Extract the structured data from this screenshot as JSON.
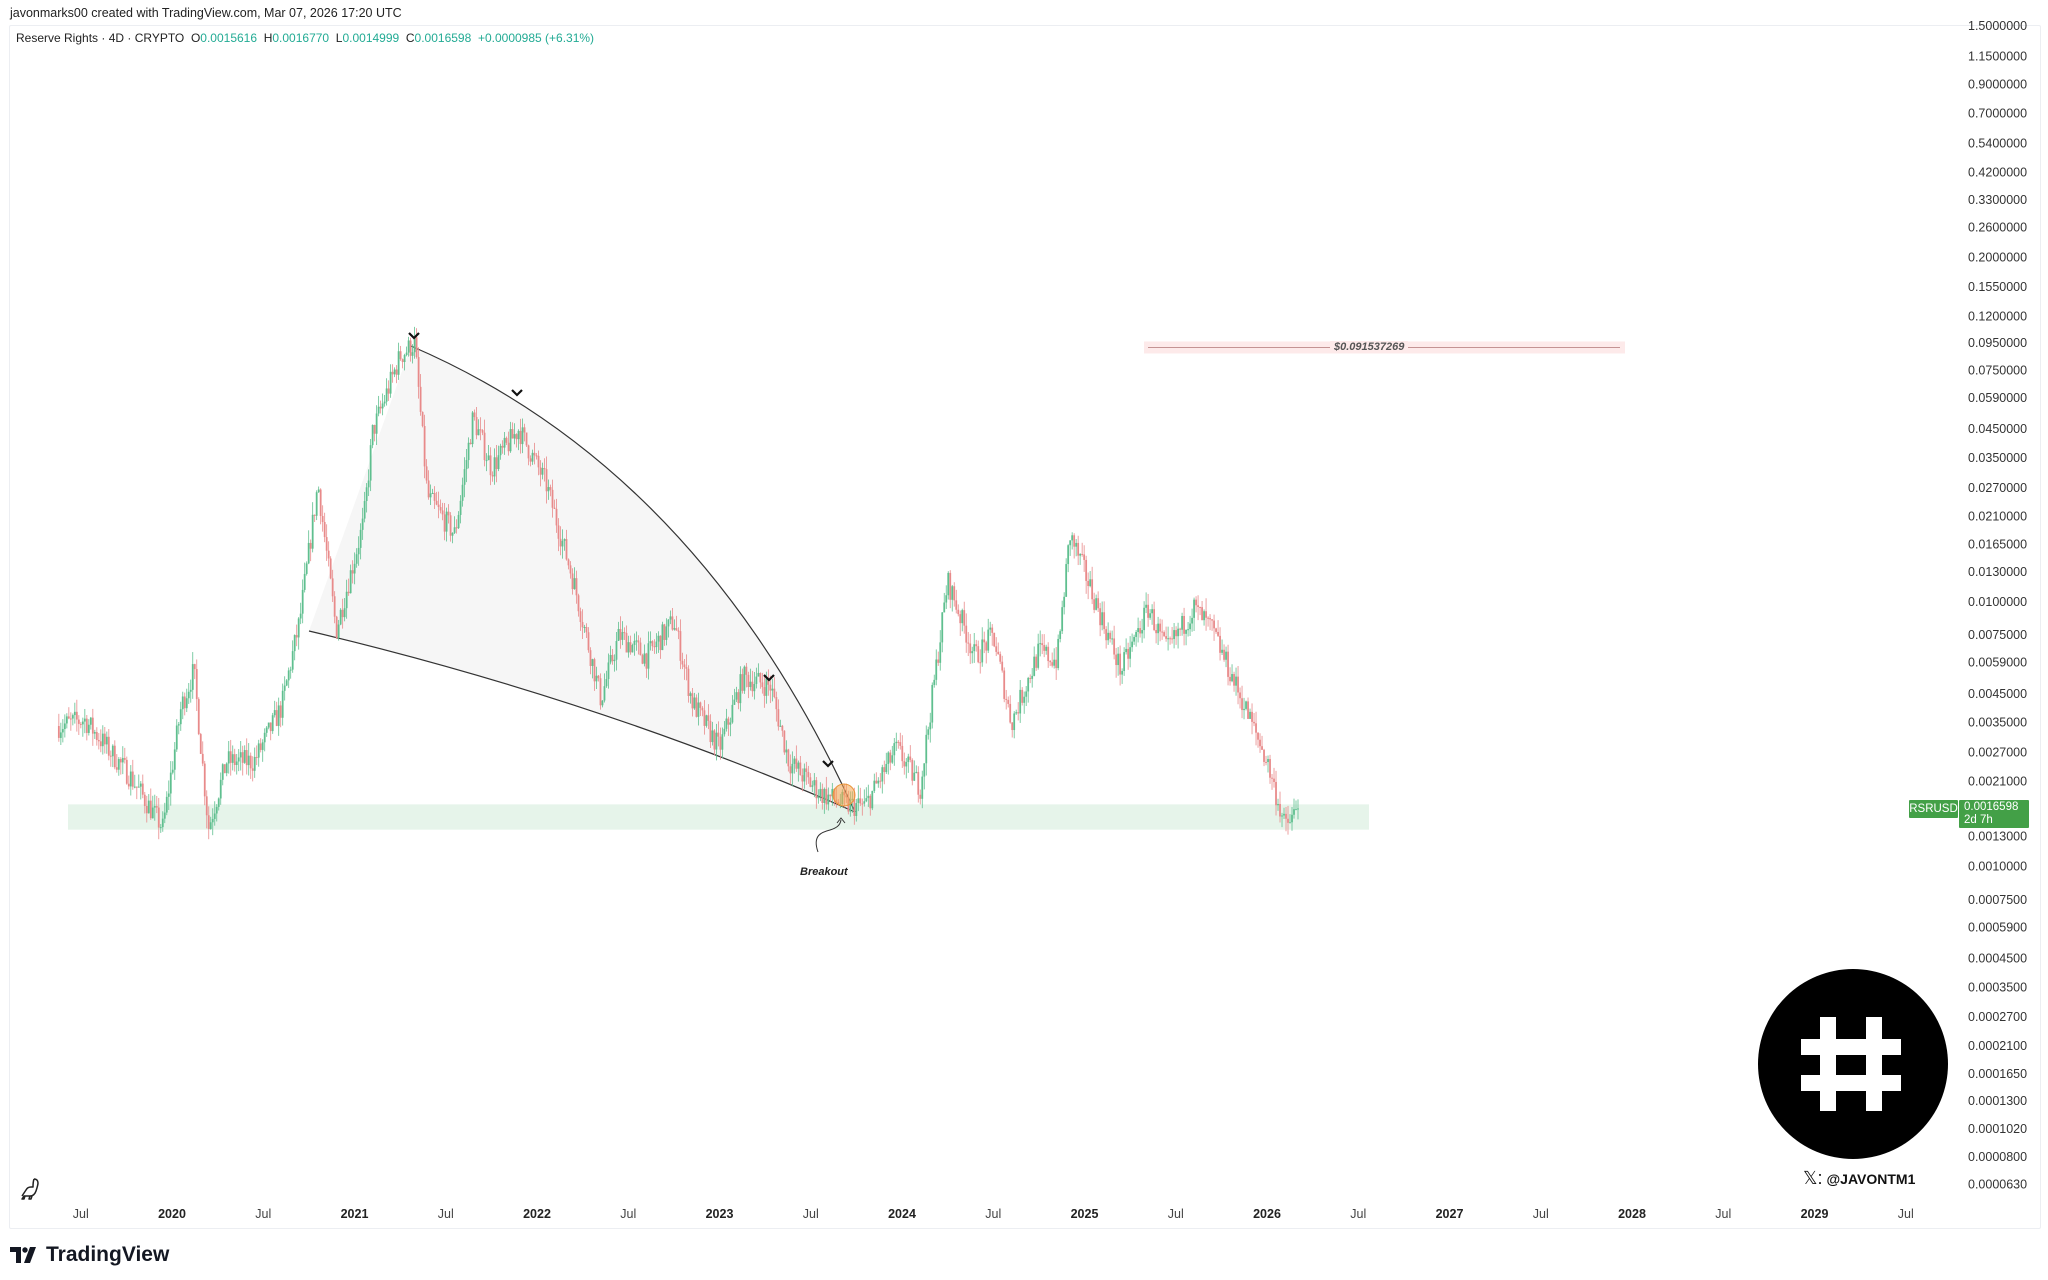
{
  "header": {
    "credit": "javonmarks00 created with TradingView.com, Mar 07, 2026 17:20 UTC",
    "symbol_desc": "Reserve Rights · 4D · CRYPTO",
    "open_label": "O",
    "open": "0.0015616",
    "high_label": "H",
    "high": "0.0016770",
    "low_label": "L",
    "low": "0.0014999",
    "close_label": "C",
    "close": "0.0016598",
    "change": "+0.0000985 (+6.31%)"
  },
  "price_tag": {
    "symbol": "RSRUSD",
    "price": "0.0016598",
    "countdown": "2d 7h"
  },
  "annotations": {
    "target_label": "$0.091537269",
    "breakout_label": "Breakout",
    "handle": "@JAVONTM1"
  },
  "footer": {
    "brand": "TradingView"
  },
  "colors": {
    "up": "#5fbf8f",
    "down": "#e88a8a",
    "accent": "#43a047",
    "zone": "#e6f4ea",
    "target_line": "#c49393"
  },
  "chart_data": {
    "type": "candlestick",
    "title": "Reserve Rights · 4D · CRYPTO",
    "scale": "log",
    "ylim": [
      6.3e-05,
      1.5
    ],
    "xlim": [
      2019.2,
      2029.85
    ],
    "y_ticks": [
      "1.5000000",
      "1.1500000",
      "0.9000000",
      "0.7000000",
      "0.5400000",
      "0.4200000",
      "0.3300000",
      "0.2600000",
      "0.2000000",
      "0.1550000",
      "0.1200000",
      "0.0950000",
      "0.0750000",
      "0.0590000",
      "0.0450000",
      "0.0350000",
      "0.0270000",
      "0.0210000",
      "0.0165000",
      "0.0130000",
      "0.0100000",
      "0.0075000",
      "0.0059000",
      "0.0045000",
      "0.0035000",
      "0.0027000",
      "0.0021000",
      "0.0013000",
      "0.0010000",
      "0.0007500",
      "0.0005900",
      "0.0004500",
      "0.0003500",
      "0.0002700",
      "0.0002100",
      "0.0001650",
      "0.0001300",
      "0.0001020",
      "0.0000800",
      "0.0000630"
    ],
    "x_ticks": [
      {
        "t": 2019.5,
        "label": "Jul",
        "year": false
      },
      {
        "t": 2020.0,
        "label": "2020",
        "year": true
      },
      {
        "t": 2020.5,
        "label": "Jul",
        "year": false
      },
      {
        "t": 2021.0,
        "label": "2021",
        "year": true
      },
      {
        "t": 2021.5,
        "label": "Jul",
        "year": false
      },
      {
        "t": 2022.0,
        "label": "2022",
        "year": true
      },
      {
        "t": 2022.5,
        "label": "Jul",
        "year": false
      },
      {
        "t": 2023.0,
        "label": "2023",
        "year": true
      },
      {
        "t": 2023.5,
        "label": "Jul",
        "year": false
      },
      {
        "t": 2024.0,
        "label": "2024",
        "year": true
      },
      {
        "t": 2024.5,
        "label": "Jul",
        "year": false
      },
      {
        "t": 2025.0,
        "label": "2025",
        "year": true
      },
      {
        "t": 2025.5,
        "label": "Jul",
        "year": false
      },
      {
        "t": 2026.0,
        "label": "2026",
        "year": true
      },
      {
        "t": 2026.5,
        "label": "Jul",
        "year": false
      },
      {
        "t": 2027.0,
        "label": "2027",
        "year": true
      },
      {
        "t": 2027.5,
        "label": "Jul",
        "year": false
      },
      {
        "t": 2028.0,
        "label": "2028",
        "year": true
      },
      {
        "t": 2028.5,
        "label": "Jul",
        "year": false
      },
      {
        "t": 2029.0,
        "label": "2029",
        "year": true
      },
      {
        "t": 2029.5,
        "label": "Jul",
        "year": false
      }
    ],
    "candle_interval_days": 4,
    "price_path": [
      [
        2019.38,
        0.0034
      ],
      [
        2019.52,
        0.0036
      ],
      [
        2019.77,
        0.0022
      ],
      [
        2019.95,
        0.0014
      ],
      [
        2020.05,
        0.004
      ],
      [
        2020.12,
        0.0055
      ],
      [
        2020.2,
        0.0014
      ],
      [
        2020.3,
        0.0025
      ],
      [
        2020.45,
        0.0025
      ],
      [
        2020.6,
        0.004
      ],
      [
        2020.7,
        0.0085
      ],
      [
        2020.8,
        0.028
      ],
      [
        2020.9,
        0.0078
      ],
      [
        2021.05,
        0.02
      ],
      [
        2021.1,
        0.044
      ],
      [
        2021.25,
        0.085
      ],
      [
        2021.33,
        0.095
      ],
      [
        2021.4,
        0.025
      ],
      [
        2021.55,
        0.018
      ],
      [
        2021.65,
        0.05
      ],
      [
        2021.75,
        0.032
      ],
      [
        2021.9,
        0.045
      ],
      [
        2022.05,
        0.028
      ],
      [
        2022.2,
        0.012
      ],
      [
        2022.35,
        0.0043
      ],
      [
        2022.45,
        0.0075
      ],
      [
        2022.6,
        0.0062
      ],
      [
        2022.75,
        0.0085
      ],
      [
        2022.85,
        0.0042
      ],
      [
        2023.0,
        0.0028
      ],
      [
        2023.13,
        0.0052
      ],
      [
        2023.28,
        0.0048
      ],
      [
        2023.38,
        0.0025
      ],
      [
        2023.55,
        0.0019
      ],
      [
        2023.7,
        0.0017
      ],
      [
        2023.8,
        0.0017
      ],
      [
        2023.97,
        0.0028
      ],
      [
        2024.1,
        0.002
      ],
      [
        2024.25,
        0.012
      ],
      [
        2024.4,
        0.0062
      ],
      [
        2024.5,
        0.0075
      ],
      [
        2024.6,
        0.0035
      ],
      [
        2024.75,
        0.0065
      ],
      [
        2024.85,
        0.006
      ],
      [
        2024.92,
        0.018
      ],
      [
        2025.0,
        0.013
      ],
      [
        2025.2,
        0.0055
      ],
      [
        2025.35,
        0.0095
      ],
      [
        2025.45,
        0.0065
      ],
      [
        2025.6,
        0.0095
      ],
      [
        2025.7,
        0.0078
      ],
      [
        2025.78,
        0.0058
      ],
      [
        2025.9,
        0.0037
      ],
      [
        2026.0,
        0.0025
      ],
      [
        2026.1,
        0.0014
      ],
      [
        2026.17,
        0.00166
      ]
    ],
    "support_zone": [
      0.00138,
      0.00172
    ],
    "target_price": 0.091537269,
    "last_price": 0.0016598
  }
}
